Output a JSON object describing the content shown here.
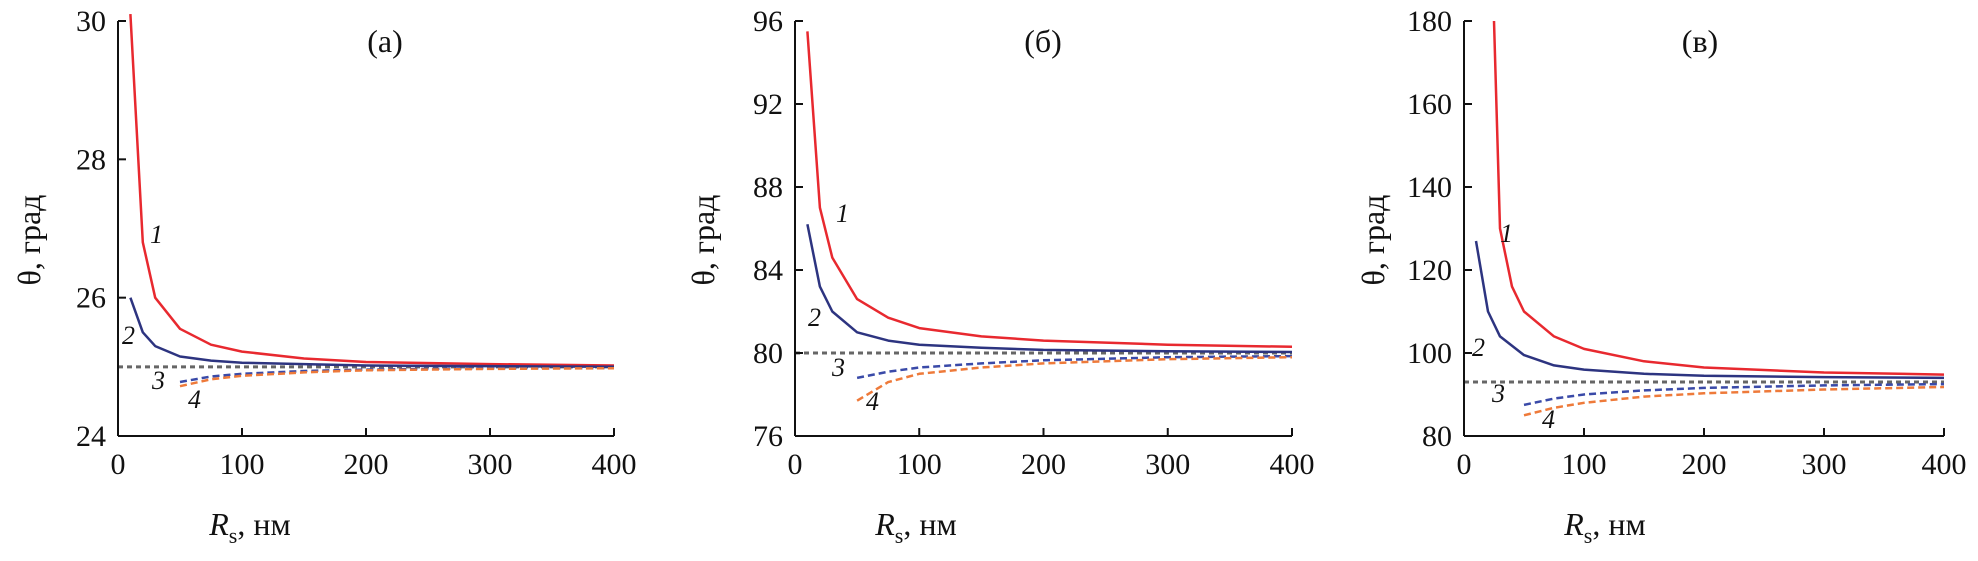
{
  "chart_data": [
    {
      "type": "line",
      "panel_label": "(а)",
      "xlabel": "R",
      "xlabel_sub": "s",
      "xlabel_unit": ", нм",
      "ylabel": "θ, град",
      "xlim": [
        0,
        400
      ],
      "ylim": [
        24,
        30
      ],
      "xticks": [
        0,
        100,
        200,
        300,
        400
      ],
      "yticks": [
        24,
        26,
        28,
        30
      ],
      "baseline": 25,
      "series": [
        {
          "name": "1",
          "color": "#e8292f",
          "dashed": false,
          "x": [
            10,
            20,
            30,
            50,
            75,
            100,
            150,
            200,
            300,
            400
          ],
          "y": [
            30.1,
            26.8,
            26.0,
            25.55,
            25.32,
            25.22,
            25.12,
            25.07,
            25.04,
            25.02
          ]
        },
        {
          "name": "2",
          "color": "#2d3480",
          "dashed": false,
          "x": [
            10,
            20,
            30,
            50,
            75,
            100,
            150,
            200,
            300,
            400
          ],
          "y": [
            26.0,
            25.5,
            25.3,
            25.15,
            25.09,
            25.06,
            25.04,
            25.02,
            25.01,
            25.0
          ]
        },
        {
          "name": "3",
          "color": "#3a4aa8",
          "dashed": true,
          "x": [
            50,
            75,
            100,
            150,
            200,
            300,
            400
          ],
          "y": [
            24.78,
            24.86,
            24.9,
            24.94,
            24.96,
            24.98,
            24.98
          ]
        },
        {
          "name": "4",
          "color": "#ee7a3a",
          "dashed": true,
          "x": [
            50,
            75,
            100,
            150,
            200,
            300,
            400
          ],
          "y": [
            24.72,
            24.82,
            24.87,
            24.92,
            24.95,
            24.97,
            24.98
          ]
        }
      ]
    },
    {
      "type": "line",
      "panel_label": "(б)",
      "xlabel": "R",
      "xlabel_sub": "s",
      "xlabel_unit": ", нм",
      "ylabel": "θ, град",
      "xlim": [
        0,
        400
      ],
      "ylim": [
        76,
        96
      ],
      "xticks": [
        0,
        100,
        200,
        300,
        400
      ],
      "yticks": [
        76,
        80,
        84,
        88,
        92,
        96
      ],
      "baseline": 80,
      "series": [
        {
          "name": "1",
          "color": "#e8292f",
          "dashed": false,
          "x": [
            10,
            20,
            30,
            50,
            75,
            100,
            150,
            200,
            300,
            400
          ],
          "y": [
            95.5,
            87.0,
            84.6,
            82.6,
            81.7,
            81.2,
            80.8,
            80.6,
            80.4,
            80.3
          ]
        },
        {
          "name": "2",
          "color": "#2d3480",
          "dashed": false,
          "x": [
            10,
            20,
            30,
            50,
            75,
            100,
            150,
            200,
            300,
            400
          ],
          "y": [
            86.2,
            83.2,
            82.0,
            81.0,
            80.6,
            80.4,
            80.25,
            80.15,
            80.08,
            80.05
          ]
        },
        {
          "name": "3",
          "color": "#3a4aa8",
          "dashed": true,
          "x": [
            50,
            75,
            100,
            150,
            200,
            300,
            400
          ],
          "y": [
            78.8,
            79.1,
            79.3,
            79.5,
            79.65,
            79.8,
            79.85
          ]
        },
        {
          "name": "4",
          "color": "#ee7a3a",
          "dashed": true,
          "x": [
            50,
            75,
            100,
            150,
            200,
            300,
            400
          ],
          "y": [
            77.7,
            78.6,
            79.0,
            79.3,
            79.5,
            79.7,
            79.8
          ]
        }
      ]
    },
    {
      "type": "line",
      "panel_label": "(в)",
      "xlabel": "R",
      "xlabel_sub": "s",
      "xlabel_unit": ", нм",
      "ylabel": "θ, град",
      "xlim": [
        0,
        400
      ],
      "ylim": [
        80,
        180
      ],
      "xticks": [
        0,
        100,
        200,
        300,
        400
      ],
      "yticks": [
        80,
        100,
        120,
        140,
        160,
        180
      ],
      "baseline": 93,
      "series": [
        {
          "name": "1",
          "color": "#e8292f",
          "dashed": false,
          "x": [
            25,
            30,
            40,
            50,
            75,
            100,
            150,
            200,
            300,
            400
          ],
          "y": [
            180,
            130,
            116,
            110,
            104,
            101,
            98,
            96.5,
            95.3,
            94.8
          ]
        },
        {
          "name": "2",
          "color": "#2d3480",
          "dashed": false,
          "x": [
            10,
            20,
            30,
            50,
            75,
            100,
            150,
            200,
            300,
            400
          ],
          "y": [
            127,
            110,
            104,
            99.5,
            97,
            96,
            95,
            94.5,
            94.2,
            94.0
          ]
        },
        {
          "name": "3",
          "color": "#3a4aa8",
          "dashed": true,
          "x": [
            50,
            75,
            100,
            150,
            200,
            300,
            400
          ],
          "y": [
            87.5,
            89,
            90,
            91,
            91.6,
            92.2,
            92.5
          ]
        },
        {
          "name": "4",
          "color": "#ee7a3a",
          "dashed": true,
          "x": [
            50,
            75,
            100,
            150,
            200,
            300,
            400
          ],
          "y": [
            85.0,
            86.8,
            88.0,
            89.5,
            90.3,
            91.2,
            91.8
          ]
        }
      ]
    }
  ]
}
